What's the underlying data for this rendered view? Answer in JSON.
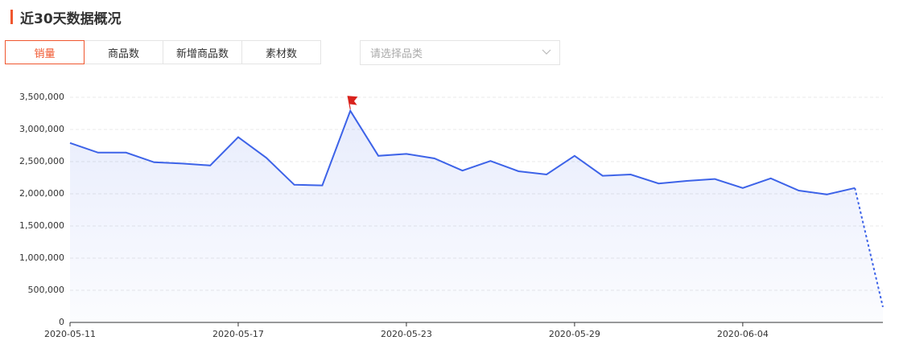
{
  "header": {
    "title": "近30天数据概况"
  },
  "tabs": [
    {
      "label": "销量",
      "active": true
    },
    {
      "label": "商品数",
      "active": false
    },
    {
      "label": "新增商品数",
      "active": false
    },
    {
      "label": "素材数",
      "active": false
    }
  ],
  "select": {
    "placeholder": "请选择品类"
  },
  "chart_data": {
    "type": "line",
    "categories": [
      "2020-05-11",
      null,
      null,
      null,
      null,
      null,
      "2020-05-17",
      null,
      null,
      null,
      null,
      null,
      "2020-05-23",
      null,
      null,
      null,
      null,
      null,
      "2020-05-29",
      null,
      null,
      null,
      null,
      null,
      "2020-06-04",
      null,
      null,
      null,
      null,
      null
    ],
    "values": [
      2790000,
      2640000,
      2640000,
      2490000,
      2470000,
      2440000,
      2880000,
      2560000,
      2140000,
      2130000,
      3290000,
      2590000,
      2620000,
      2550000,
      2360000,
      2510000,
      2350000,
      2300000,
      2590000,
      2280000,
      2300000,
      2160000,
      2200000,
      2230000,
      2090000,
      2240000,
      2050000,
      1990000,
      2090000,
      240000
    ],
    "color": "#3d63e8",
    "dashed_last_segment": true,
    "ylim": [
      0,
      3500000
    ],
    "yticks": [
      0,
      {
        "value": 500000,
        "label": "500,000"
      },
      {
        "value": 1000000,
        "label": "1,000,000"
      },
      {
        "value": 1500000,
        "label": "1,500,000"
      },
      {
        "value": 2000000,
        "label": "2,000,000"
      },
      {
        "value": 2500000,
        "label": "2,500,000"
      },
      {
        "value": 3000000,
        "label": "3,000,000"
      },
      {
        "value": 3500000,
        "label": "3,500,000"
      }
    ],
    "grid": true
  }
}
